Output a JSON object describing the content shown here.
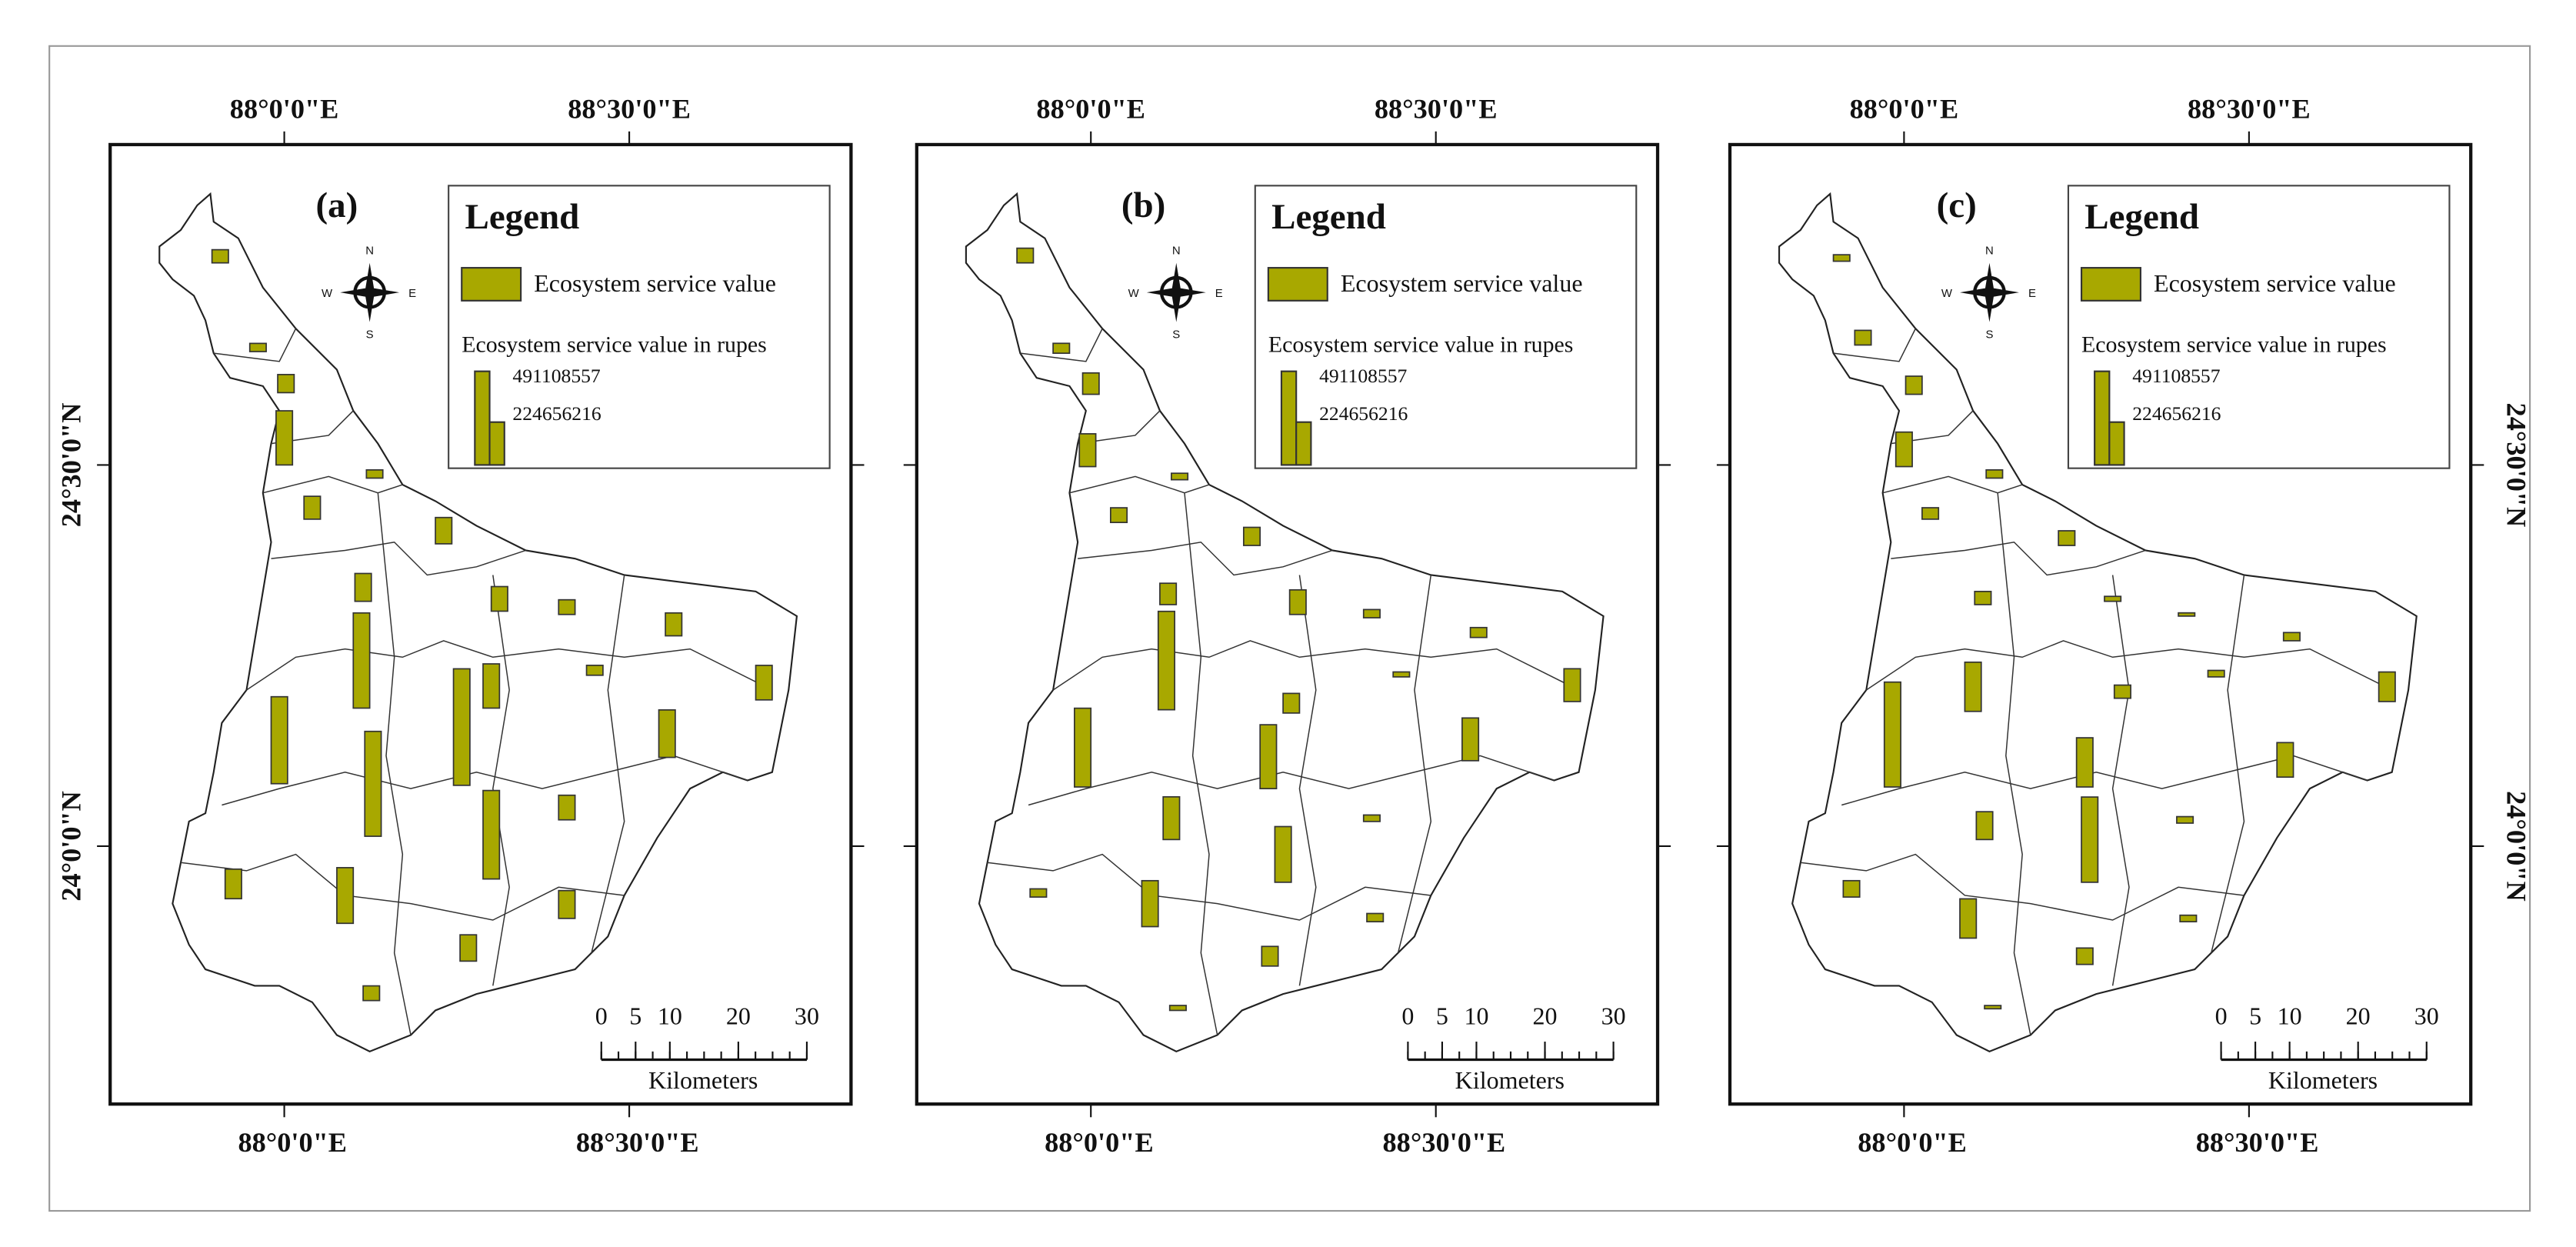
{
  "maps": [
    {
      "label": "(a)",
      "bars": [
        69000000,
        43000000,
        95000000,
        284000000,
        43000000,
        120000000,
        138000000,
        146000000,
        129000000,
        77000000,
        120000000,
        499000000,
        232000000,
        52000000,
        181000000,
        456000000,
        611000000,
        249000000,
        550000000,
        129000000,
        464000000,
        155000000,
        292000000,
        146000000,
        138000000,
        77000000
      ]
    },
    {
      "label": "(b)",
      "bars": [
        77000000,
        52000000,
        112000000,
        172000000,
        34000000,
        77000000,
        95000000,
        112000000,
        129000000,
        43000000,
        52000000,
        516000000,
        103000000,
        26000000,
        172000000,
        413000000,
        335000000,
        224000000,
        224000000,
        34000000,
        292000000,
        43000000,
        241000000,
        43000000,
        103000000,
        26000000
      ]
    },
    {
      "label": "(c)",
      "bars": [
        34000000,
        77000000,
        95000000,
        181000000,
        43000000,
        60000000,
        77000000,
        69000000,
        26000000,
        17000000,
        43000000,
        258000000,
        69000000,
        34000000,
        155000000,
        550000000,
        258000000,
        181000000,
        146000000,
        34000000,
        447000000,
        86000000,
        206000000,
        34000000,
        86000000,
        17000000
      ]
    }
  ],
  "legend": {
    "title": "Legend",
    "item": "Ecosystem service value",
    "subtitle": "Ecosystem service value in rupes",
    "values": [
      491108557,
      224656216
    ]
  },
  "scale": {
    "ticks": [
      0,
      5,
      10,
      20,
      30
    ],
    "unit": "Kilometers"
  },
  "graticule": {
    "lon": [
      "88°0'0\"E",
      "88°30'0\"E"
    ],
    "lat": [
      "24°30'0\"N",
      "24°0'0\"N"
    ]
  },
  "compass": {
    "n": "N",
    "s": "S",
    "e": "E",
    "w": "W"
  }
}
